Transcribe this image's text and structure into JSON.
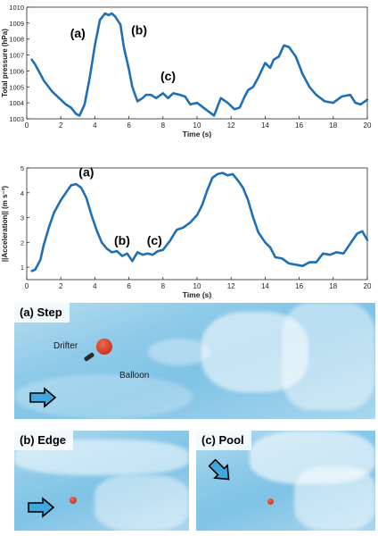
{
  "chart_data": [
    {
      "type": "line",
      "title": "",
      "xlabel": "Time (s)",
      "ylabel": "Total pressure (hPa)",
      "xlim": [
        0,
        20
      ],
      "ylim": [
        1003,
        1010
      ],
      "xticks": [
        0,
        2,
        4,
        6,
        8,
        10,
        12,
        14,
        16,
        18,
        20
      ],
      "yticks": [
        1003,
        1004,
        1005,
        1006,
        1007,
        1008,
        1009,
        1010
      ],
      "line_color": "#1f6fb4",
      "annotations": [
        {
          "text": "(a)",
          "x": 3.0,
          "y": 1008.1
        },
        {
          "text": "(b)",
          "x": 6.6,
          "y": 1008.3
        },
        {
          "text": "(c)",
          "x": 8.3,
          "y": 1005.4
        }
      ],
      "series": [
        {
          "x": [
            0.3,
            0.5,
            1.0,
            1.5,
            2.0,
            2.3,
            2.6,
            2.9,
            3.1,
            3.4,
            3.7,
            4.0,
            4.3,
            4.6,
            4.8,
            5.0,
            5.2,
            5.5,
            5.7,
            6.0,
            6.2,
            6.5,
            6.8,
            7.0,
            7.3,
            7.6,
            8.0,
            8.3,
            8.6,
            9.0,
            9.3,
            9.6,
            10.0,
            10.5,
            11.0,
            11.4,
            11.8,
            12.2,
            12.5,
            12.8,
            13.0,
            13.3,
            13.6,
            14.0,
            14.3,
            14.5,
            14.8,
            15.1,
            15.4,
            15.8,
            16.2,
            16.6,
            17.0,
            17.5,
            18.0,
            18.5,
            19.0,
            19.3,
            19.6,
            20.0
          ],
          "y": [
            1006.7,
            1006.4,
            1005.4,
            1004.7,
            1004.2,
            1003.9,
            1003.7,
            1003.3,
            1003.2,
            1003.9,
            1005.6,
            1007.6,
            1009.2,
            1009.6,
            1009.5,
            1009.6,
            1009.4,
            1008.9,
            1007.5,
            1006.1,
            1005.0,
            1004.1,
            1004.3,
            1004.5,
            1004.5,
            1004.3,
            1004.6,
            1004.3,
            1004.6,
            1004.5,
            1004.4,
            1003.9,
            1004.0,
            1003.6,
            1003.2,
            1004.3,
            1004.0,
            1003.6,
            1003.7,
            1004.4,
            1004.8,
            1005.0,
            1005.6,
            1006.5,
            1006.2,
            1006.7,
            1006.9,
            1007.6,
            1007.5,
            1006.9,
            1005.8,
            1005.0,
            1004.5,
            1004.1,
            1004.0,
            1004.4,
            1004.5,
            1004.0,
            1003.9,
            1004.2
          ]
        }
      ]
    },
    {
      "type": "line",
      "title": "",
      "xlabel": "Time (s)",
      "ylabel": "||Acceleration|| (m s⁻²)",
      "xlim": [
        0,
        20
      ],
      "ylim": [
        0.5,
        5
      ],
      "xticks": [
        0,
        2,
        4,
        6,
        8,
        10,
        12,
        14,
        16,
        18,
        20
      ],
      "yticks": [
        1,
        2,
        3,
        4,
        5
      ],
      "line_color": "#1f6fb4",
      "annotations": [
        {
          "text": "(a)",
          "x": 3.5,
          "y": 4.65
        },
        {
          "text": "(b)",
          "x": 5.6,
          "y": 1.9
        },
        {
          "text": "(c)",
          "x": 7.5,
          "y": 1.9
        }
      ],
      "series": [
        {
          "x": [
            0.3,
            0.5,
            0.8,
            1.0,
            1.3,
            1.6,
            2.0,
            2.3,
            2.6,
            2.9,
            3.2,
            3.5,
            3.8,
            4.1,
            4.4,
            4.7,
            5.0,
            5.3,
            5.6,
            5.9,
            6.2,
            6.5,
            6.8,
            7.1,
            7.4,
            7.7,
            8.0,
            8.4,
            8.8,
            9.2,
            9.6,
            10.0,
            10.3,
            10.6,
            10.9,
            11.2,
            11.5,
            11.8,
            12.1,
            12.4,
            12.7,
            13.0,
            13.3,
            13.6,
            14.0,
            14.3,
            14.6,
            15.0,
            15.4,
            15.8,
            16.2,
            16.6,
            17.0,
            17.4,
            17.8,
            18.2,
            18.6,
            19.0,
            19.4,
            19.7,
            20.0
          ],
          "y": [
            0.85,
            0.9,
            1.3,
            1.9,
            2.6,
            3.2,
            3.7,
            4.0,
            4.3,
            4.35,
            4.2,
            3.8,
            3.1,
            2.5,
            2.0,
            1.75,
            1.6,
            1.65,
            1.45,
            1.55,
            1.25,
            1.6,
            1.5,
            1.55,
            1.5,
            1.65,
            1.7,
            2.05,
            2.5,
            2.6,
            2.8,
            3.1,
            3.5,
            4.1,
            4.6,
            4.75,
            4.8,
            4.7,
            4.75,
            4.5,
            4.2,
            3.7,
            3.0,
            2.4,
            2.0,
            1.8,
            1.4,
            1.35,
            1.15,
            1.1,
            1.05,
            1.2,
            1.2,
            1.55,
            1.5,
            1.6,
            1.55,
            1.95,
            2.35,
            2.45,
            2.1
          ]
        }
      ]
    }
  ],
  "photos": [
    {
      "label": "(a) Step",
      "texts": {
        "drifter": "Drifter",
        "balloon": "Balloon"
      },
      "icon": "arrow-right-icon"
    },
    {
      "label": "(b) Edge",
      "icon": "arrow-right-icon"
    },
    {
      "label": "(c) Pool",
      "icon": "arrow-down-right-icon"
    }
  ]
}
